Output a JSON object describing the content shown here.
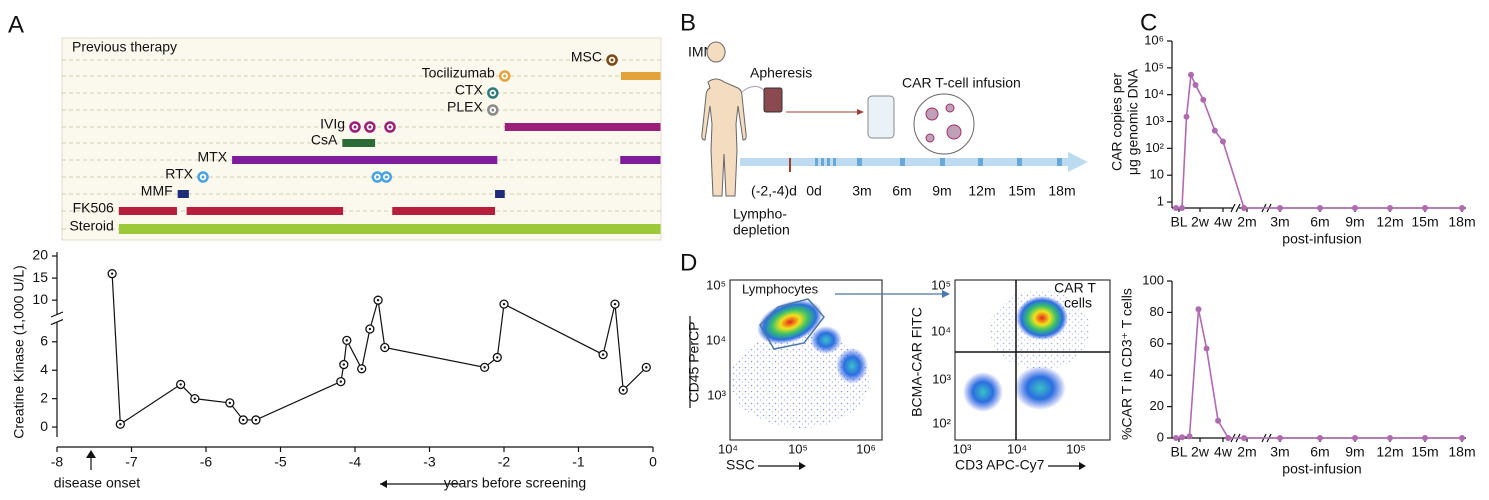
{
  "panel_labels": {
    "a": "A",
    "b": "B",
    "c": "C",
    "d": "D"
  },
  "therapy": {
    "title": "Previous therapy",
    "rows": [
      {
        "name": "MSC",
        "color": "#7b4a12",
        "doses": [
          -0.55
        ]
      },
      {
        "name": "Tocilizumab",
        "color": "#e3a33a",
        "doses": [
          -1.99
        ],
        "bars": [
          [
            -0.43,
            0.1
          ]
        ]
      },
      {
        "name": "CTX",
        "color": "#2f7c7c",
        "doses": [
          -2.15
        ]
      },
      {
        "name": "PLEX",
        "color": "#8a8a8a",
        "doses": [
          -2.15
        ]
      },
      {
        "name": "IVIg",
        "color": "#9b1f78",
        "doses": [
          -4.0,
          -3.8,
          -3.53
        ],
        "bars": [
          [
            -1.99,
            0.1
          ]
        ]
      },
      {
        "name": "CsA",
        "color": "#2d6a35",
        "bars": [
          [
            -4.17,
            -3.73
          ]
        ]
      },
      {
        "name": "MTX",
        "color": "#7d1c9c",
        "bars": [
          [
            -5.65,
            -2.09
          ],
          [
            -0.44,
            0.1
          ]
        ]
      },
      {
        "name": "RTX",
        "color": "#4aa3df",
        "doses": [
          -6.04,
          -3.7,
          -3.58
        ]
      },
      {
        "name": "MMF",
        "color": "#1d2b78",
        "bars": [
          [
            -6.38,
            -6.23
          ],
          [
            -2.12,
            -1.99
          ]
        ]
      },
      {
        "name": "FK506",
        "color": "#b61e3b",
        "bars": [
          [
            -7.17,
            -6.39
          ],
          [
            -6.26,
            -4.16
          ],
          [
            -3.5,
            -2.12
          ]
        ]
      },
      {
        "name": "Steroid",
        "color": "#9cc93a",
        "bars": [
          [
            -7.17,
            0.1
          ]
        ]
      }
    ]
  },
  "chart_data": [
    {
      "type": "line",
      "y_label": "Creatine Kinase (1,000 U/L)",
      "x_label": "years before screening",
      "annotation": "disease onset",
      "x": [
        -7.26,
        -7.15,
        -6.34,
        -6.15,
        -5.68,
        -5.5,
        -5.33,
        -4.19,
        -4.15,
        -4.11,
        -3.91,
        -3.8,
        -3.69,
        -3.6,
        -2.26,
        -2.09,
        -2.0,
        -0.67,
        -0.51,
        -0.4,
        -0.09
      ],
      "values": [
        16,
        0.2,
        3.0,
        2.0,
        1.7,
        0.5,
        0.5,
        3.2,
        4.4,
        6.1,
        4.1,
        6.9,
        10,
        5.6,
        4.2,
        4.9,
        9.1,
        5.1,
        9.1,
        2.6,
        4.2
      ],
      "color": "#111111",
      "xlim": [
        -8,
        0
      ],
      "xticks": [
        -8,
        -7,
        -6,
        -5,
        -4,
        -3,
        -2,
        -1,
        0
      ],
      "ylim": [
        -0.7,
        20
      ],
      "ybreak": [
        7,
        8
      ],
      "yticks": [
        0,
        2,
        4,
        6,
        10,
        15,
        20
      ]
    },
    {
      "type": "line",
      "log_y": true,
      "y_label": [
        "CAR copies per",
        "μg genomic DNA"
      ],
      "x_label": "post-infusion",
      "x": [
        -2,
        2,
        5,
        8,
        11,
        16,
        23,
        28,
        56,
        90,
        180,
        270,
        360,
        450,
        540
      ],
      "values": [
        0,
        0,
        1500,
        55000,
        23000,
        6500,
        460,
        180,
        0,
        0,
        0,
        0,
        0,
        0,
        0
      ],
      "color": "#b06ab0",
      "xticks": [
        {
          "value": 0,
          "label": "BL"
        },
        {
          "value": 14,
          "label": "2w"
        },
        {
          "value": 28,
          "label": "4w"
        },
        {
          "value": 60,
          "label": "2m"
        },
        {
          "value": 90,
          "label": "3m"
        },
        {
          "value": 180,
          "label": "6m"
        },
        {
          "value": 270,
          "label": "9m"
        },
        {
          "value": 360,
          "label": "12m"
        },
        {
          "value": 450,
          "label": "15m"
        },
        {
          "value": 540,
          "label": "18m"
        }
      ],
      "ylim": [
        0.6,
        1000000
      ],
      "yticks": [
        1,
        10,
        {
          "value": 100,
          "label": "10²"
        },
        {
          "value": 1000,
          "label": "10³"
        },
        {
          "value": 10000,
          "label": "10⁴"
        },
        {
          "value": 100000,
          "label": "10⁵"
        },
        {
          "value": 1000000,
          "label": "10⁶"
        }
      ]
    },
    {
      "type": "line",
      "y_label": "%CAR T in CD3⁺ T cells",
      "x_label": "post-infusion",
      "x": [
        -2,
        2,
        7,
        13,
        18,
        25,
        35,
        56,
        90,
        180,
        270,
        360,
        450,
        540
      ],
      "values": [
        0,
        0.5,
        1,
        82,
        57,
        11,
        0,
        0,
        0,
        0,
        0,
        0,
        0,
        0
      ],
      "color": "#b06ab0",
      "xticks": [
        {
          "value": 0,
          "label": "BL"
        },
        {
          "value": 14,
          "label": "2w"
        },
        {
          "value": 28,
          "label": "4w"
        },
        {
          "value": 60,
          "label": "2m"
        },
        {
          "value": 90,
          "label": "3m"
        },
        {
          "value": 180,
          "label": "6m"
        },
        {
          "value": 270,
          "label": "9m"
        },
        {
          "value": 360,
          "label": "12m"
        },
        {
          "value": 450,
          "label": "15m"
        },
        {
          "value": 540,
          "label": "18m"
        }
      ],
      "ylim": [
        0,
        100
      ],
      "yticks": [
        0,
        20,
        40,
        60,
        80,
        100
      ]
    }
  ],
  "workflow": {
    "patient": "IMNM",
    "apheresis": "Apheresis",
    "infusion": "CAR T-cell infusion",
    "timeline": [
      "(-2,-4)d",
      "0d",
      "3m",
      "6m",
      "9m",
      "12m",
      "15m",
      "18m"
    ],
    "lymphodepletion": [
      "Lympho-",
      "depletion"
    ]
  },
  "flow": {
    "gate1": "Lymphocytes",
    "gate2": [
      "CAR T",
      "cells"
    ],
    "plot1": {
      "y_label": "CD45 PerCP",
      "x_label": "SSC",
      "yticks": [
        "10⁵",
        "10⁴",
        "10³"
      ],
      "xticks": [
        "10⁴",
        "10⁵",
        "10⁶"
      ]
    },
    "plot2": {
      "y_label": "BCMA-CAR FITC",
      "x_label": "CD3 APC-Cy7",
      "yticks": [
        "10⁵",
        "10⁴",
        "10³",
        "10²"
      ],
      "xticks": [
        "10³",
        "10⁴",
        "10⁵"
      ]
    }
  }
}
